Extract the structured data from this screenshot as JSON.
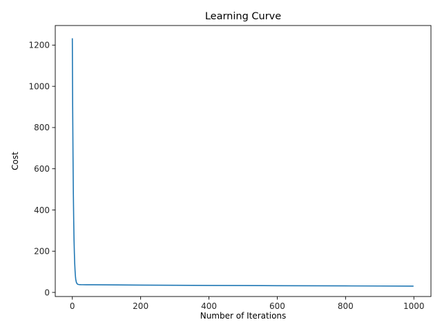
{
  "chart_data": {
    "type": "line",
    "title": "Learning Curve",
    "xlabel": "Number of Iterations",
    "ylabel": "Cost",
    "xlim": [
      -50,
      1050
    ],
    "ylim": [
      -20,
      1295
    ],
    "xticks": [
      0,
      200,
      400,
      600,
      800,
      1000
    ],
    "yticks": [
      0,
      200,
      400,
      600,
      800,
      1000,
      1200
    ],
    "grid": false,
    "series": [
      {
        "color": "#1f77b4",
        "x": [
          0,
          1,
          2,
          3,
          4,
          5,
          6,
          7,
          8,
          9,
          10,
          12,
          14,
          16,
          18,
          20,
          25,
          30,
          40,
          60,
          100,
          200,
          300,
          400,
          500,
          600,
          700,
          800,
          900,
          999
        ],
        "y": [
          1233,
          900,
          660,
          480,
          350,
          255,
          190,
          140,
          105,
          80,
          63,
          48,
          42,
          39.5,
          38.5,
          38,
          37.5,
          37.3,
          37.2,
          37,
          36.5,
          35.5,
          34.5,
          33.8,
          33.2,
          32.6,
          32,
          31.5,
          31,
          30.5
        ]
      }
    ]
  }
}
